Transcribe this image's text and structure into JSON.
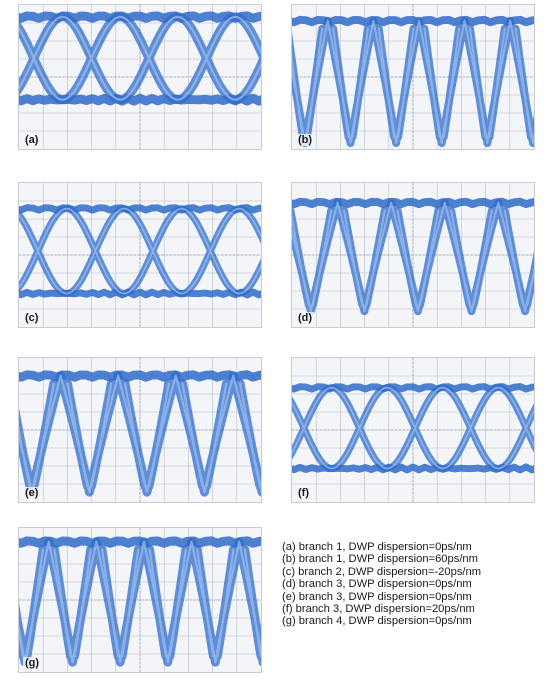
{
  "chart_data": {
    "type": "eye-diagram",
    "panels": [
      {
        "id": "a",
        "label": "(a)",
        "branch": 1,
        "dwp_dispersion_ps_nm": 0,
        "legend": "(a) branch 1, DWP dispersion=0ps/nm"
      },
      {
        "id": "b",
        "label": "(b)",
        "branch": 1,
        "dwp_dispersion_ps_nm": 60,
        "legend": "(b) branch 1, DWP dispersion=60ps/nm"
      },
      {
        "id": "c",
        "label": "(c)",
        "branch": 2,
        "dwp_dispersion_ps_nm": -20,
        "legend": "(c) branch 2, DWP dispersion=-20ps/nm"
      },
      {
        "id": "d",
        "label": "(d)",
        "branch": 3,
        "dwp_dispersion_ps_nm": 0,
        "legend": "(d) branch 3, DWP dispersion=0ps/nm"
      },
      {
        "id": "e",
        "label": "(e)",
        "branch": 3,
        "dwp_dispersion_ps_nm": 0,
        "legend": "(e) branch 3, DWP dispersion=0ps/nm"
      },
      {
        "id": "f",
        "label": "(f)",
        "branch": 3,
        "dwp_dispersion_ps_nm": 20,
        "legend": "(f) branch 3, DWP dispersion=20ps/nm"
      },
      {
        "id": "g",
        "label": "(g)",
        "branch": 4,
        "dwp_dispersion_ps_nm": 0,
        "legend": "(g) branch 4, DWP dispersion=0ps/nm"
      }
    ],
    "grid": true,
    "trace_color": "#2f6bc9",
    "legend_placement": "bottom-right"
  }
}
